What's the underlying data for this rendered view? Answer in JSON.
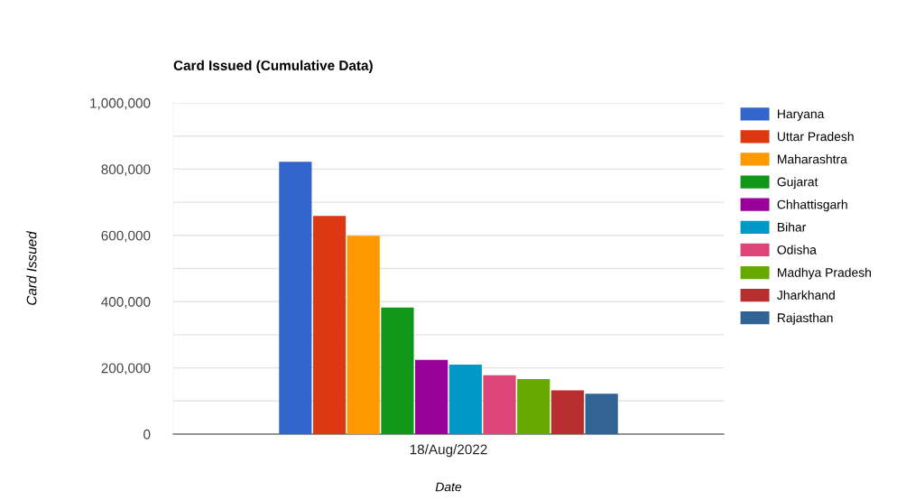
{
  "chart_data": {
    "type": "bar",
    "title": "Card Issued (Cumulative Data)",
    "xlabel": "Date",
    "ylabel": "Card Issued",
    "categories": [
      "18/Aug/2022"
    ],
    "series": [
      {
        "name": "Haryana",
        "color": "#3366cc",
        "values": [
          822000
        ]
      },
      {
        "name": "Uttar Pradesh",
        "color": "#dc3912",
        "values": [
          659000
        ]
      },
      {
        "name": "Maharashtra",
        "color": "#ff9900",
        "values": [
          599000
        ]
      },
      {
        "name": "Gujarat",
        "color": "#109618",
        "values": [
          382000
        ]
      },
      {
        "name": "Chhattisgarh",
        "color": "#990099",
        "values": [
          224000
        ]
      },
      {
        "name": "Bihar",
        "color": "#0099c6",
        "values": [
          210000
        ]
      },
      {
        "name": "Odisha",
        "color": "#dd4477",
        "values": [
          178000
        ]
      },
      {
        "name": "Madhya Pradesh",
        "color": "#66aa00",
        "values": [
          166000
        ]
      },
      {
        "name": "Jharkhand",
        "color": "#b82e2e",
        "values": [
          132000
        ]
      },
      {
        "name": "Rajasthan",
        "color": "#316395",
        "values": [
          122000
        ]
      }
    ],
    "ylim": [
      0,
      1000000
    ],
    "yticks": [
      {
        "value": 0,
        "label": "0"
      },
      {
        "value": 100000,
        "label": null
      },
      {
        "value": 200000,
        "label": "200,000"
      },
      {
        "value": 300000,
        "label": null
      },
      {
        "value": 400000,
        "label": "400,000"
      },
      {
        "value": 500000,
        "label": null
      },
      {
        "value": 600000,
        "label": "600,000"
      },
      {
        "value": 700000,
        "label": null
      },
      {
        "value": 800000,
        "label": "800,000"
      },
      {
        "value": 900000,
        "label": null
      },
      {
        "value": 1000000,
        "label": "1,000,000"
      }
    ],
    "grid": "y",
    "legend": "right"
  }
}
